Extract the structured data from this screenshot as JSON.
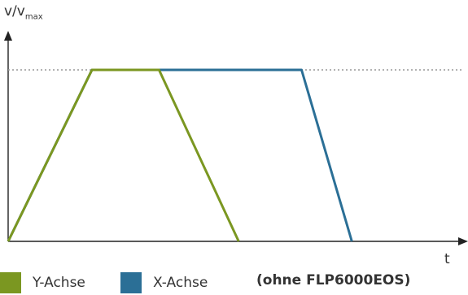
{
  "chart_data": {
    "type": "line",
    "ylabel_main": "v/v",
    "ylabel_sub": "max",
    "xlabel": "t",
    "xlim": [
      0,
      10
    ],
    "ylim": [
      0,
      1
    ],
    "reference_line": 1,
    "series": [
      {
        "name": "X-Achse",
        "color": "#2b6f96",
        "x": [
          0,
          2,
          7,
          8.2
        ],
        "y": [
          0,
          1,
          1,
          0
        ]
      },
      {
        "name": "Y-Achse",
        "color": "#7b9721",
        "x": [
          0,
          2,
          3.6,
          5.5
        ],
        "y": [
          0,
          1,
          1,
          0
        ]
      }
    ],
    "note": "(ohne FLP6000EOS)"
  }
}
